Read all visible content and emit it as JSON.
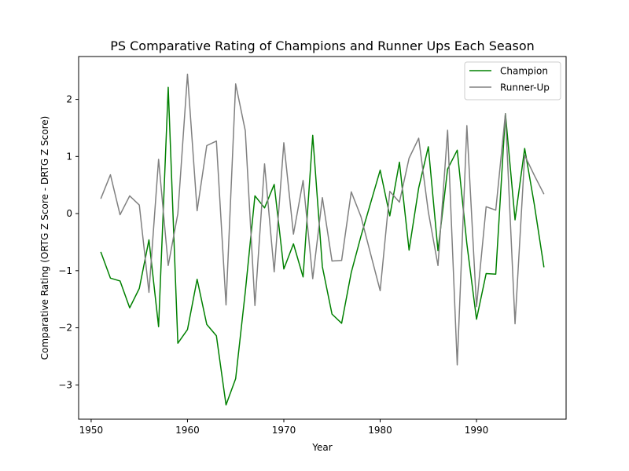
{
  "chart_data": {
    "type": "line",
    "title": "PS Comparative Rating of Champions and Runner Ups Each Season",
    "xlabel": "Year",
    "ylabel": "Comparative Rating (ORTG Z Score - DRTG Z Score)",
    "xlim": [
      1948.7,
      1999.3
    ],
    "ylim": [
      -3.6,
      2.75
    ],
    "xticks": [
      1950,
      1960,
      1970,
      1980,
      1990
    ],
    "yticks": [
      -3,
      -2,
      -1,
      0,
      1,
      2
    ],
    "grid": false,
    "legend": "top-right",
    "x": [
      1951,
      1952,
      1953,
      1954,
      1955,
      1956,
      1957,
      1958,
      1959,
      1960,
      1961,
      1962,
      1963,
      1964,
      1965,
      1966,
      1967,
      1968,
      1969,
      1970,
      1971,
      1972,
      1973,
      1974,
      1975,
      1976,
      1977,
      1978,
      1979,
      1980,
      1981,
      1982,
      1983,
      1984,
      1985,
      1986,
      1987,
      1988,
      1989,
      1990,
      1991,
      1992,
      1993,
      1994,
      1995,
      1996,
      1997
    ],
    "series": [
      {
        "name": "Champion",
        "color": "#008000",
        "values": [
          -0.67,
          -1.13,
          -1.18,
          -1.65,
          -1.31,
          -0.46,
          -1.98,
          2.21,
          -2.27,
          -2.03,
          -1.15,
          -1.94,
          -2.14,
          -3.35,
          -2.89,
          -1.37,
          0.31,
          0.1,
          0.51,
          -0.97,
          -0.53,
          -1.11,
          1.37,
          -0.93,
          -1.76,
          -1.92,
          -1.03,
          -0.4,
          0.18,
          0.76,
          -0.04,
          0.9,
          -0.64,
          0.45,
          1.17,
          -0.65,
          0.78,
          1.11,
          -0.53,
          -1.85,
          -1.05,
          -1.06,
          1.75,
          -0.11,
          1.14,
          0.16,
          -0.94
        ]
      },
      {
        "name": "Runner-Up",
        "color": "#808080",
        "values": [
          0.26,
          0.68,
          -0.02,
          0.31,
          0.15,
          -1.38,
          0.95,
          -0.91,
          0.0,
          2.44,
          0.05,
          1.19,
          1.27,
          -1.6,
          2.27,
          1.45,
          -1.61,
          0.87,
          -1.02,
          1.24,
          -0.36,
          0.58,
          -1.14,
          0.28,
          -0.83,
          -0.82,
          0.38,
          -0.05,
          -0.7,
          -1.35,
          0.39,
          0.2,
          0.97,
          1.32,
          0.03,
          -0.91,
          1.46,
          -2.65,
          1.54,
          -1.63,
          0.12,
          0.06,
          1.75,
          -1.93,
          1.02,
          0.67,
          0.34
        ]
      }
    ]
  }
}
